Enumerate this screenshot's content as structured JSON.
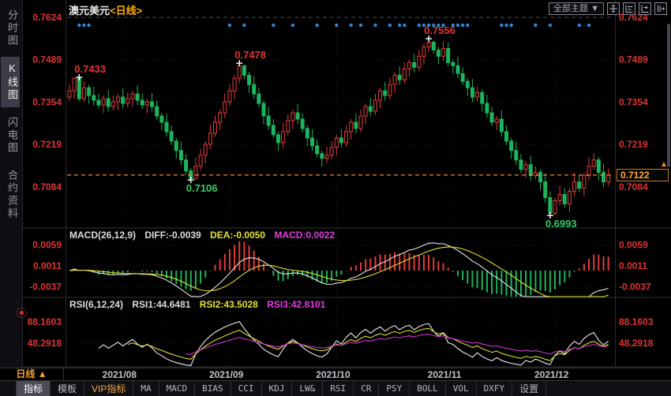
{
  "header": {
    "symbol": "澳元美元",
    "period_tag": "<日线>",
    "theme_dropdown": "全部主题 ▼"
  },
  "sidebar": {
    "items": [
      {
        "label": "分时图",
        "selected": false
      },
      {
        "label": "K线图",
        "selected": true
      },
      {
        "label": "闪电图",
        "selected": false
      },
      {
        "label": "合约资料",
        "selected": false
      }
    ]
  },
  "indicators": {
    "macd": {
      "title": "MACD(26,12,9)",
      "diff_label": "DIFF:-0.0039",
      "dea_label": "DEA:-0.0050",
      "macd_label": "MACD:0.0022"
    },
    "rsi": {
      "title": "RSI(6,12,24)",
      "rsi1_label": "RSI1:44.6481",
      "rsi2_label": "RSI2:43.5028",
      "rsi3_label": "RSI3:42.8101"
    }
  },
  "bottom": {
    "period_label": "日线 ▲"
  },
  "toolbar": {
    "items": [
      {
        "label": "指标",
        "selected": true,
        "style": "cjk"
      },
      {
        "label": "模板",
        "selected": false,
        "style": "cjk"
      },
      {
        "label": "VIP指标",
        "selected": false,
        "style": "vip"
      },
      {
        "label": "MA",
        "selected": false,
        "style": "mono"
      },
      {
        "label": "MACD",
        "selected": false,
        "style": "mono"
      },
      {
        "label": "BIAS",
        "selected": false,
        "style": "mono"
      },
      {
        "label": "CCI",
        "selected": false,
        "style": "mono"
      },
      {
        "label": "KDJ",
        "selected": false,
        "style": "mono"
      },
      {
        "label": "LW&",
        "selected": false,
        "style": "mono"
      },
      {
        "label": "RSI",
        "selected": false,
        "style": "mono"
      },
      {
        "label": "CR",
        "selected": false,
        "style": "mono"
      },
      {
        "label": "PSY",
        "selected": false,
        "style": "mono"
      },
      {
        "label": "BOLL",
        "selected": false,
        "style": "mono"
      },
      {
        "label": "VOL",
        "selected": false,
        "style": "mono"
      },
      {
        "label": "DXFY",
        "selected": false,
        "style": "mono"
      },
      {
        "label": "设置",
        "selected": false,
        "style": "cjk"
      }
    ]
  },
  "colors": {
    "up": "#e23b3b",
    "down": "#1cb45c",
    "axis_text": "#dd3434",
    "signal_dot": "#2f86d6",
    "dashed_line": "#f08a3c",
    "diff_line": "#e6e6e6",
    "dea_line": "#dcdc34",
    "macd_text": "#e23ce2",
    "rsi1_line": "#ececec",
    "rsi2_line": "#dcdc34",
    "rsi3_line": "#cc33cc",
    "grid": "#24242b",
    "grid_top": "#4a4a52",
    "annotation_up": "#e03636",
    "annotation_down": "#33cc66",
    "cross": "#ffffff"
  },
  "chart_data": {
    "type": "candlestick",
    "title": "澳元美元<日线>",
    "period": "日线",
    "y_axis_main": [
      0.7624,
      0.7489,
      0.7354,
      0.7219,
      0.7084
    ],
    "y_axis_macd": [
      0.0059,
      0.0011,
      -0.0037
    ],
    "y_axis_rsi": [
      88.1603,
      48.2918
    ],
    "x_axis": {
      "labels": [
        "2021/08",
        "2021/09",
        "2021/10",
        "2021/11",
        "2021/12"
      ],
      "indices": [
        11,
        33,
        55,
        78,
        100
      ]
    },
    "last_price": "0.7122",
    "macd_params": [
      26,
      12,
      9
    ],
    "rsi_params": [
      6,
      12,
      24
    ],
    "latest": {
      "diff": -0.0039,
      "dea": -0.005,
      "macd": 0.0022,
      "rsi1": 44.6481,
      "rsi2": 43.5028,
      "rsi3": 42.8101
    },
    "annotations": [
      {
        "index": 2,
        "text": "0.7433",
        "type": "high",
        "color": "#e03636"
      },
      {
        "index": 25,
        "text": "0.7106",
        "type": "low",
        "color": "#33cc66"
      },
      {
        "index": 35,
        "text": "0.7478",
        "type": "high",
        "color": "#e03636"
      },
      {
        "index": 74,
        "text": "0.7556",
        "type": "high",
        "color": "#e03636"
      },
      {
        "index": 99,
        "text": "0.6993",
        "type": "low",
        "color": "#33cc66"
      }
    ],
    "signal_dot_indices": [
      2,
      3,
      4,
      33,
      36,
      42,
      46,
      51,
      55,
      58,
      60,
      63,
      66,
      68,
      69,
      72,
      73,
      74,
      75,
      76,
      77,
      79,
      80,
      81,
      82,
      89,
      90,
      91,
      96,
      99,
      105,
      107
    ],
    "candles": [
      [
        0.737,
        0.741,
        0.7358,
        0.739
      ],
      [
        0.739,
        0.7432,
        0.7364,
        0.743
      ],
      [
        0.743,
        0.7433,
        0.7358,
        0.7365
      ],
      [
        0.7365,
        0.742,
        0.7355,
        0.74
      ],
      [
        0.74,
        0.741,
        0.7349,
        0.7375
      ],
      [
        0.7375,
        0.7403,
        0.7344,
        0.736
      ],
      [
        0.736,
        0.738,
        0.7333,
        0.7345
      ],
      [
        0.7345,
        0.7375,
        0.7319,
        0.7365
      ],
      [
        0.7365,
        0.7393,
        0.7324,
        0.734
      ],
      [
        0.734,
        0.7375,
        0.7328,
        0.7355
      ],
      [
        0.7355,
        0.738,
        0.7329,
        0.737
      ],
      [
        0.737,
        0.7398,
        0.7334,
        0.735
      ],
      [
        0.735,
        0.7385,
        0.7338,
        0.7365
      ],
      [
        0.7365,
        0.739,
        0.7339,
        0.738
      ],
      [
        0.738,
        0.7408,
        0.7344,
        0.736
      ],
      [
        0.736,
        0.738,
        0.7333,
        0.7345
      ],
      [
        0.7345,
        0.7365,
        0.7319,
        0.7355
      ],
      [
        0.7355,
        0.7383,
        0.7324,
        0.734
      ],
      [
        0.734,
        0.736,
        0.7298,
        0.731
      ],
      [
        0.731,
        0.732,
        0.7264,
        0.729
      ],
      [
        0.729,
        0.7318,
        0.7244,
        0.726
      ],
      [
        0.726,
        0.728,
        0.7218,
        0.723
      ],
      [
        0.723,
        0.724,
        0.7174,
        0.72
      ],
      [
        0.72,
        0.7228,
        0.7154,
        0.717
      ],
      [
        0.717,
        0.719,
        0.7123,
        0.7135
      ],
      [
        0.7135,
        0.7145,
        0.7106,
        0.711
      ],
      [
        0.711,
        0.7178,
        0.7108,
        0.715
      ],
      [
        0.715,
        0.7205,
        0.7138,
        0.7185
      ],
      [
        0.7185,
        0.723,
        0.7159,
        0.722
      ],
      [
        0.722,
        0.7283,
        0.7204,
        0.7255
      ],
      [
        0.7255,
        0.731,
        0.7243,
        0.729
      ],
      [
        0.729,
        0.733,
        0.7264,
        0.732
      ],
      [
        0.732,
        0.7383,
        0.7304,
        0.7355
      ],
      [
        0.7355,
        0.741,
        0.7343,
        0.739
      ],
      [
        0.739,
        0.744,
        0.7364,
        0.743
      ],
      [
        0.743,
        0.7478,
        0.7414,
        0.747
      ],
      [
        0.747,
        0.7472,
        0.7428,
        0.744
      ],
      [
        0.744,
        0.745,
        0.7384,
        0.741
      ],
      [
        0.741,
        0.7438,
        0.7364,
        0.738
      ],
      [
        0.738,
        0.74,
        0.7338,
        0.735
      ],
      [
        0.735,
        0.736,
        0.7284,
        0.731
      ],
      [
        0.731,
        0.7338,
        0.7264,
        0.728
      ],
      [
        0.728,
        0.73,
        0.7238,
        0.725
      ],
      [
        0.725,
        0.726,
        0.7199,
        0.7225
      ],
      [
        0.7225,
        0.7288,
        0.7209,
        0.726
      ],
      [
        0.726,
        0.7315,
        0.7248,
        0.7295
      ],
      [
        0.7295,
        0.733,
        0.7269,
        0.732
      ],
      [
        0.732,
        0.7348,
        0.7284,
        0.73
      ],
      [
        0.73,
        0.732,
        0.7258,
        0.727
      ],
      [
        0.727,
        0.728,
        0.7214,
        0.724
      ],
      [
        0.724,
        0.7268,
        0.7199,
        0.7215
      ],
      [
        0.7215,
        0.7235,
        0.7178,
        0.719
      ],
      [
        0.719,
        0.72,
        0.7149,
        0.7175
      ],
      [
        0.7175,
        0.7213,
        0.7159,
        0.7185
      ],
      [
        0.7185,
        0.723,
        0.7173,
        0.721
      ],
      [
        0.721,
        0.725,
        0.7184,
        0.724
      ],
      [
        0.724,
        0.7268,
        0.7209,
        0.7225
      ],
      [
        0.7225,
        0.728,
        0.7213,
        0.726
      ],
      [
        0.726,
        0.73,
        0.7234,
        0.729
      ],
      [
        0.729,
        0.7318,
        0.7254,
        0.727
      ],
      [
        0.727,
        0.733,
        0.7258,
        0.731
      ],
      [
        0.731,
        0.735,
        0.7284,
        0.734
      ],
      [
        0.734,
        0.7368,
        0.7309,
        0.7325
      ],
      [
        0.7325,
        0.738,
        0.7313,
        0.736
      ],
      [
        0.736,
        0.74,
        0.7334,
        0.739
      ],
      [
        0.739,
        0.7418,
        0.7359,
        0.7375
      ],
      [
        0.7375,
        0.743,
        0.7363,
        0.741
      ],
      [
        0.741,
        0.745,
        0.7384,
        0.744
      ],
      [
        0.744,
        0.7468,
        0.7409,
        0.7425
      ],
      [
        0.7425,
        0.748,
        0.7413,
        0.746
      ],
      [
        0.746,
        0.749,
        0.7434,
        0.748
      ],
      [
        0.748,
        0.7508,
        0.7449,
        0.7465
      ],
      [
        0.7465,
        0.752,
        0.7453,
        0.75
      ],
      [
        0.75,
        0.754,
        0.7474,
        0.753
      ],
      [
        0.753,
        0.7556,
        0.7514,
        0.7545
      ],
      [
        0.7545,
        0.755,
        0.7508,
        0.752
      ],
      [
        0.752,
        0.753,
        0.7474,
        0.75
      ],
      [
        0.75,
        0.7548,
        0.7484,
        0.7525
      ],
      [
        0.7525,
        0.7545,
        0.7468,
        0.748
      ],
      [
        0.748,
        0.749,
        0.7444,
        0.747
      ],
      [
        0.747,
        0.7498,
        0.7429,
        0.7445
      ],
      [
        0.7445,
        0.7465,
        0.7408,
        0.742
      ],
      [
        0.742,
        0.743,
        0.7374,
        0.74
      ],
      [
        0.74,
        0.7428,
        0.7354,
        0.737
      ],
      [
        0.737,
        0.7405,
        0.7358,
        0.7385
      ],
      [
        0.7385,
        0.7395,
        0.7324,
        0.735
      ],
      [
        0.735,
        0.7378,
        0.7304,
        0.732
      ],
      [
        0.732,
        0.734,
        0.7278,
        0.729
      ],
      [
        0.729,
        0.731,
        0.7264,
        0.73
      ],
      [
        0.73,
        0.7328,
        0.7244,
        0.726
      ],
      [
        0.726,
        0.728,
        0.7218,
        0.723
      ],
      [
        0.723,
        0.724,
        0.7174,
        0.72
      ],
      [
        0.72,
        0.7228,
        0.7154,
        0.717
      ],
      [
        0.717,
        0.719,
        0.7128,
        0.714
      ],
      [
        0.714,
        0.7165,
        0.7114,
        0.7155
      ],
      [
        0.7155,
        0.7183,
        0.7104,
        0.712
      ],
      [
        0.712,
        0.715,
        0.7108,
        0.713
      ],
      [
        0.713,
        0.714,
        0.7074,
        0.71
      ],
      [
        0.71,
        0.7128,
        0.7034,
        0.705
      ],
      [
        0.705,
        0.707,
        0.6993,
        0.7
      ],
      [
        0.7,
        0.705,
        0.6994,
        0.704
      ],
      [
        0.704,
        0.7088,
        0.7024,
        0.706
      ],
      [
        0.706,
        0.708,
        0.7018,
        0.703
      ],
      [
        0.703,
        0.708,
        0.7004,
        0.707
      ],
      [
        0.707,
        0.7128,
        0.7054,
        0.71
      ],
      [
        0.71,
        0.712,
        0.7068,
        0.708
      ],
      [
        0.708,
        0.713,
        0.7054,
        0.712
      ],
      [
        0.712,
        0.7178,
        0.7104,
        0.715
      ],
      [
        0.715,
        0.719,
        0.7138,
        0.717
      ],
      [
        0.717,
        0.718,
        0.7104,
        0.713
      ],
      [
        0.713,
        0.7158,
        0.7084,
        0.71
      ],
      [
        0.71,
        0.7142,
        0.7088,
        0.7122
      ]
    ]
  }
}
